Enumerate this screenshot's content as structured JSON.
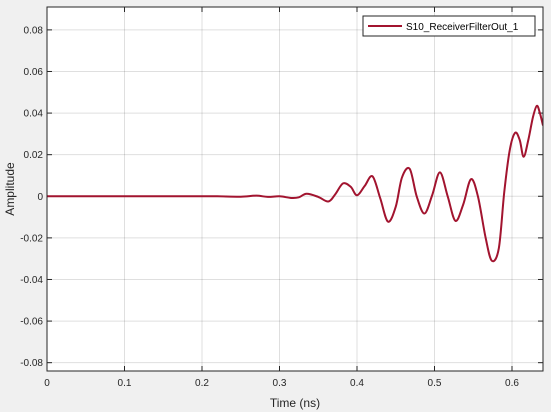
{
  "chart_data": {
    "type": "line",
    "xlabel": "Time (ns)",
    "ylabel": "Amplitude",
    "xlim": [
      0,
      0.64
    ],
    "ylim": [
      -0.084,
      0.091
    ],
    "grid": true,
    "legend_location": "top-right",
    "xticks": [
      0,
      0.1,
      0.2,
      0.3,
      0.4,
      0.5,
      0.6
    ],
    "xtick_labels": [
      "0",
      "0.1",
      "0.2",
      "0.3",
      "0.4",
      "0.5",
      "0.6"
    ],
    "yticks": [
      -0.08,
      -0.06,
      -0.04,
      -0.02,
      0,
      0.02,
      0.04,
      0.06,
      0.08
    ],
    "ytick_labels": [
      "-0.08",
      "-0.06",
      "-0.04",
      "-0.02",
      "0",
      "0.02",
      "0.04",
      "0.06",
      "0.08"
    ],
    "series": [
      {
        "name": "S10_ReceiverFilterOut_1",
        "color": "#a2142f",
        "x": [
          0,
          0.05,
          0.1,
          0.15,
          0.2,
          0.22,
          0.25,
          0.27,
          0.285,
          0.3,
          0.315,
          0.325,
          0.335,
          0.35,
          0.363,
          0.372,
          0.382,
          0.392,
          0.4,
          0.41,
          0.42,
          0.43,
          0.44,
          0.45,
          0.458,
          0.468,
          0.477,
          0.487,
          0.497,
          0.507,
          0.517,
          0.527,
          0.537,
          0.547,
          0.556,
          0.566,
          0.574,
          0.583,
          0.59,
          0.597,
          0.604,
          0.61,
          0.615,
          0.621,
          0.627,
          0.632,
          0.636,
          0.64
        ],
        "values": [
          0,
          0,
          0,
          0,
          0,
          0,
          -0.0002,
          0.0003,
          -0.0003,
          0,
          -0.0008,
          -0.0005,
          0.0012,
          -0.0003,
          -0.0025,
          0.001,
          0.0062,
          0.0045,
          0.0005,
          0.005,
          0.0096,
          -0.001,
          -0.0122,
          -0.005,
          0.009,
          0.0132,
          0.0,
          -0.0083,
          0.0005,
          0.0115,
          0.0,
          -0.0118,
          -0.004,
          0.0082,
          0.0,
          -0.02,
          -0.031,
          -0.025,
          0.002,
          0.022,
          0.0305,
          0.027,
          0.019,
          0.027,
          0.038,
          0.0435,
          0.04,
          0.034
        ]
      }
    ]
  }
}
